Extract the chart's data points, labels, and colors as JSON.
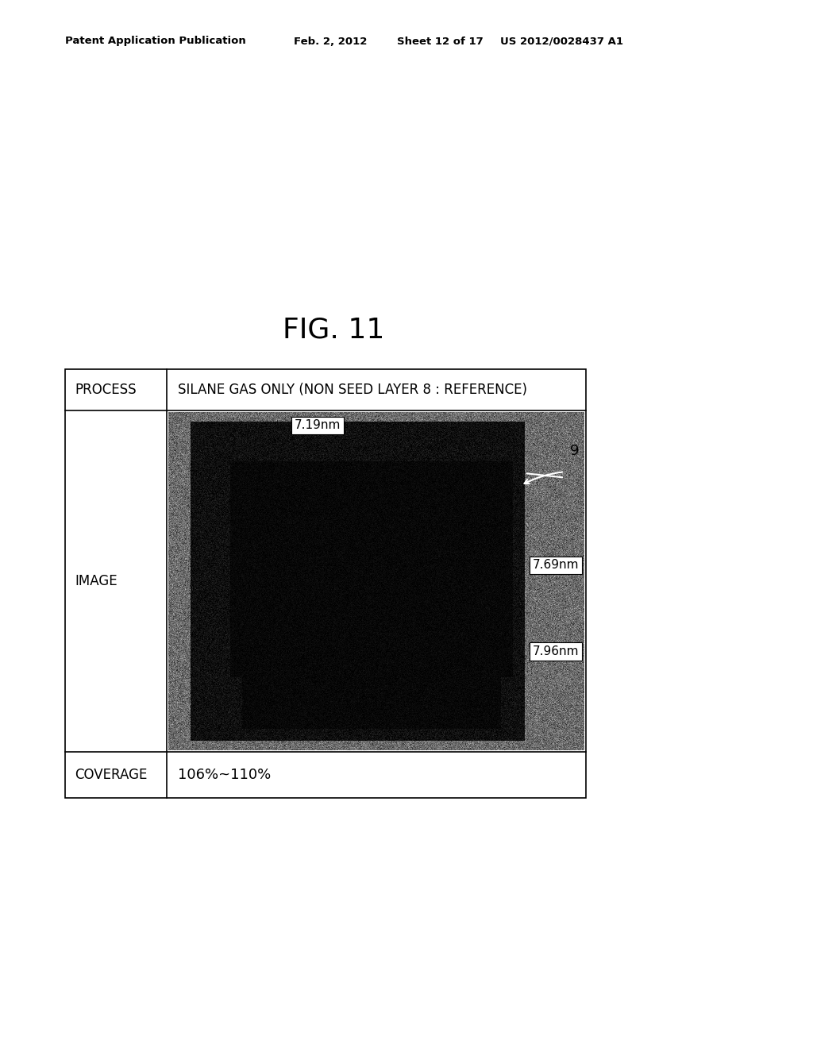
{
  "title": "FIG. 11",
  "header_row": {
    "col1": "PROCESS",
    "col2": "SILANE GAS ONLY (NON SEED LAYER 8 : REFERENCE)"
  },
  "image_row": {
    "col1": "IMAGE"
  },
  "coverage_row": {
    "col1": "COVERAGE",
    "col2": "106%~110%"
  },
  "measurements": [
    {
      "label": "7.19nm"
    },
    {
      "label": "7.69nm"
    },
    {
      "label": "7.96nm"
    }
  ],
  "arrow_label": "9",
  "header_top_left": "Patent Application Publication",
  "header_top_date": "Feb. 2, 2012",
  "header_top_sheet": "Sheet 12 of 17",
  "header_top_patent": "US 2012/0028437 A1",
  "bg_color": "#ffffff",
  "table_border_color": "#000000",
  "text_color": "#000000"
}
